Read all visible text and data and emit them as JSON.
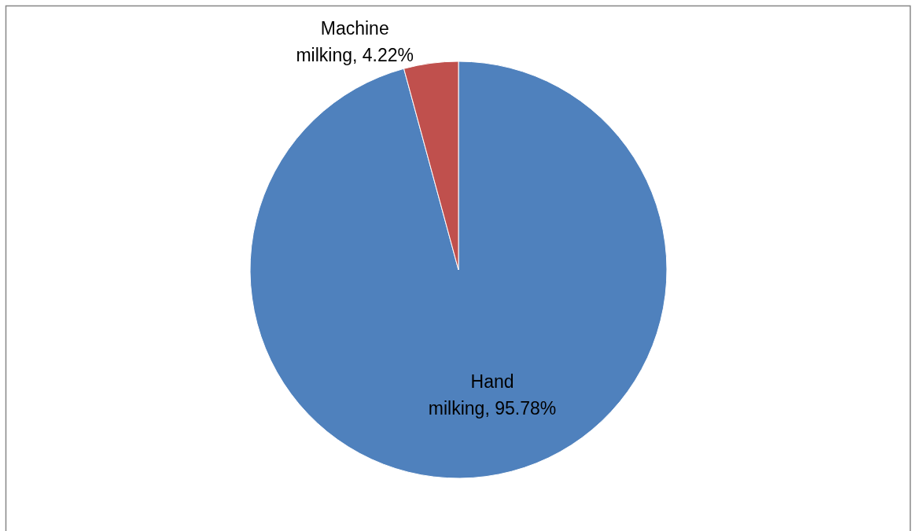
{
  "chart_data": {
    "type": "pie",
    "categories": [
      "Hand milking",
      "Machine milking"
    ],
    "values": [
      95.78,
      4.22
    ],
    "colors": [
      "#4f81bd",
      "#c0504d"
    ],
    "value_labels": [
      "95.78%",
      "4.22%"
    ],
    "legend": false
  }
}
